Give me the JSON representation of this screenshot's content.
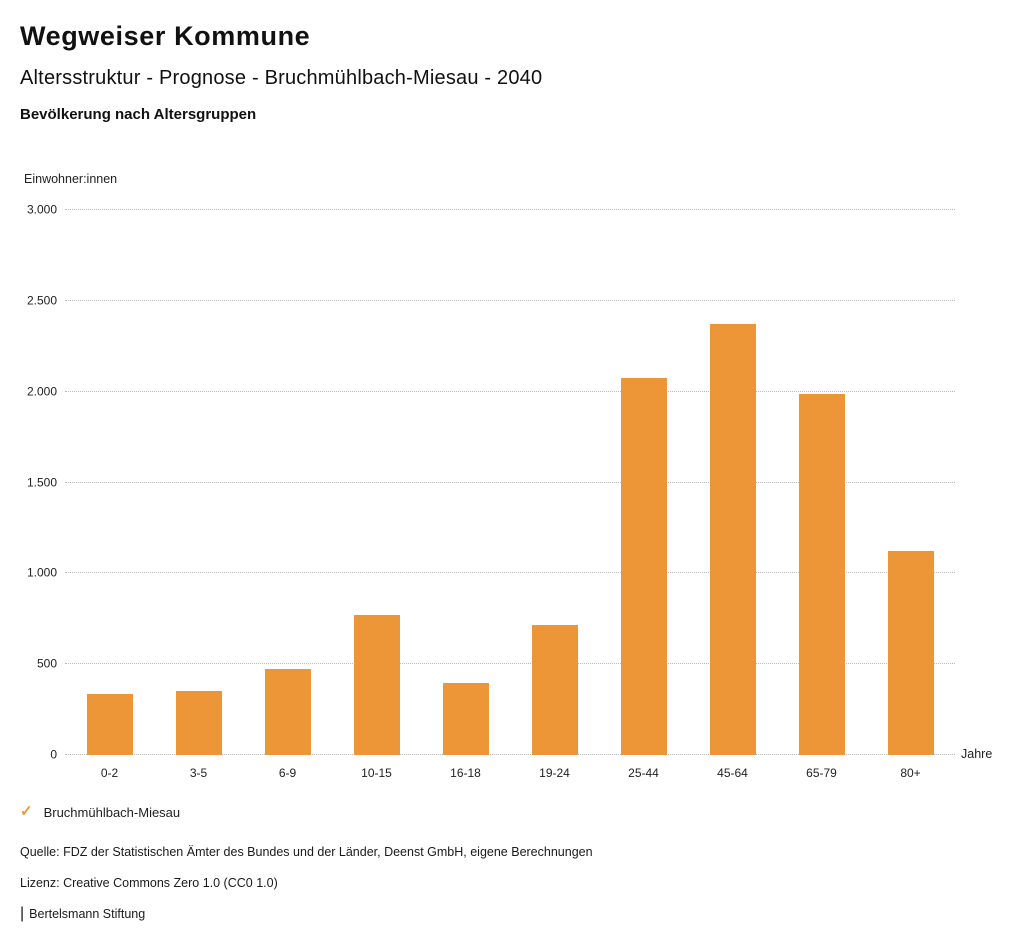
{
  "header": {
    "title": "Wegweiser Kommune",
    "subtitle": "Altersstruktur - Prognose - Bruchmühlbach-Miesau - 2040",
    "chart_heading": "Bevölkerung nach Altersgruppen"
  },
  "chart_data": {
    "type": "bar",
    "title": "Bevölkerung nach Altersgruppen",
    "categories": [
      "0-2",
      "3-5",
      "6-9",
      "10-15",
      "16-18",
      "19-24",
      "25-44",
      "45-64",
      "65-79",
      "80+"
    ],
    "values": [
      335,
      350,
      475,
      770,
      395,
      715,
      2075,
      2370,
      1985,
      1125
    ],
    "series_name": "Bruchmühlbach-Miesau",
    "ylabel": "Einwohner:innen",
    "xlabel": "Jahre",
    "ylim": [
      0,
      3000
    ],
    "yticks": [
      0,
      500,
      1000,
      1500,
      2000,
      2500,
      3000
    ],
    "ytick_labels": [
      "0",
      "500",
      "1.000",
      "1.500",
      "2.000",
      "2.500",
      "3.000"
    ],
    "grid": "horizontal-dotted",
    "legend_position": "bottom-left",
    "bar_color": "#ED9637"
  },
  "legend": {
    "marker": "✓",
    "marker_color": "#ED9637",
    "label": "Bruchmühlbach-Miesau"
  },
  "footer": {
    "source": "Quelle: FDZ der Statistischen Ämter des Bundes und der Länder, Deenst GmbH, eigene Berechnungen",
    "license": "Lizenz: Creative Commons Zero 1.0 (CC0 1.0)",
    "divider": "|",
    "attribution": "Bertelsmann Stiftung"
  }
}
